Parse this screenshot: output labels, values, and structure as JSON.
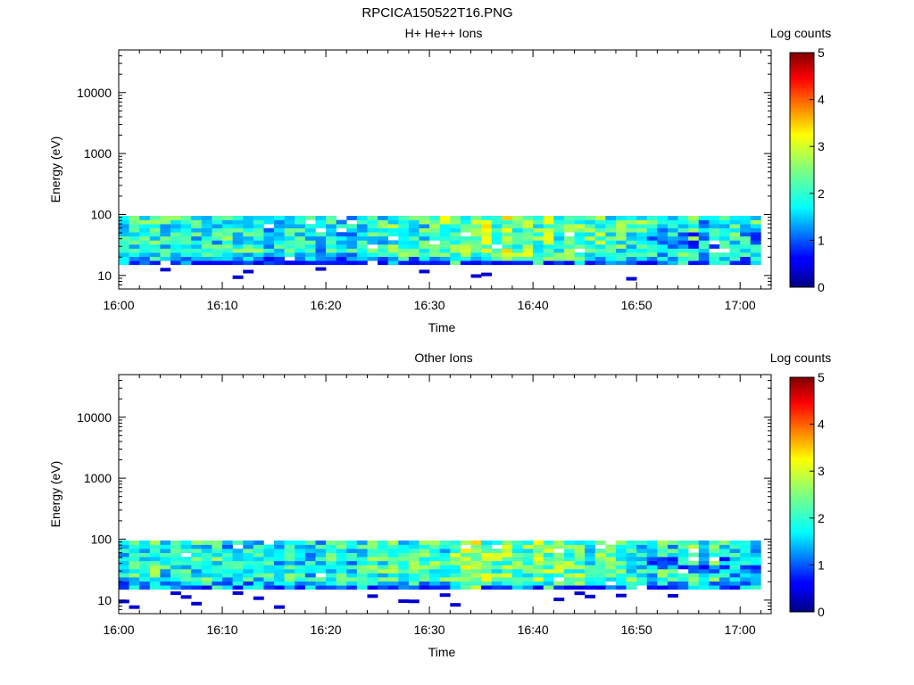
{
  "page_title": "RPCICA150522T16.PNG",
  "chart_data": [
    {
      "type": "heatmap",
      "title": "H+ He++ Ions",
      "xlabel": "Time",
      "ylabel": "Energy (eV)",
      "x_start": "16:00",
      "x_end": "17:03",
      "x_ticks": [
        "16:00",
        "16:10",
        "16:20",
        "16:30",
        "16:40",
        "16:50",
        "17:00"
      ],
      "y_scale": "log",
      "ylim": [
        6,
        50000
      ],
      "y_ticks": [
        10,
        100,
        1000,
        10000
      ],
      "y_tick_labels": [
        "10",
        "100",
        "1000",
        "10000"
      ],
      "energy_range_ev": [
        15,
        95
      ],
      "counts_peak_time": "16:37",
      "colorbar": {
        "label": "Log counts",
        "range": [
          0,
          5
        ],
        "ticks": [
          "0",
          "1",
          "2",
          "3",
          "4",
          "5"
        ],
        "colormap": "jet"
      },
      "seed": 3
    },
    {
      "type": "heatmap",
      "title": "Other Ions",
      "xlabel": "Time",
      "ylabel": "Energy (eV)",
      "x_start": "16:00",
      "x_end": "17:03",
      "x_ticks": [
        "16:00",
        "16:10",
        "16:20",
        "16:30",
        "16:40",
        "16:50",
        "17:00"
      ],
      "y_scale": "log",
      "ylim": [
        6,
        50000
      ],
      "y_ticks": [
        10,
        100,
        1000,
        10000
      ],
      "y_tick_labels": [
        "10",
        "100",
        "1000",
        "10000"
      ],
      "energy_range_ev": [
        15,
        95
      ],
      "counts_peak_time": "16:37",
      "colorbar": {
        "label": "Log counts",
        "range": [
          0,
          5
        ],
        "ticks": [
          "0",
          "1",
          "2",
          "3",
          "4",
          "5"
        ],
        "colormap": "jet"
      },
      "seed": 11
    }
  ]
}
